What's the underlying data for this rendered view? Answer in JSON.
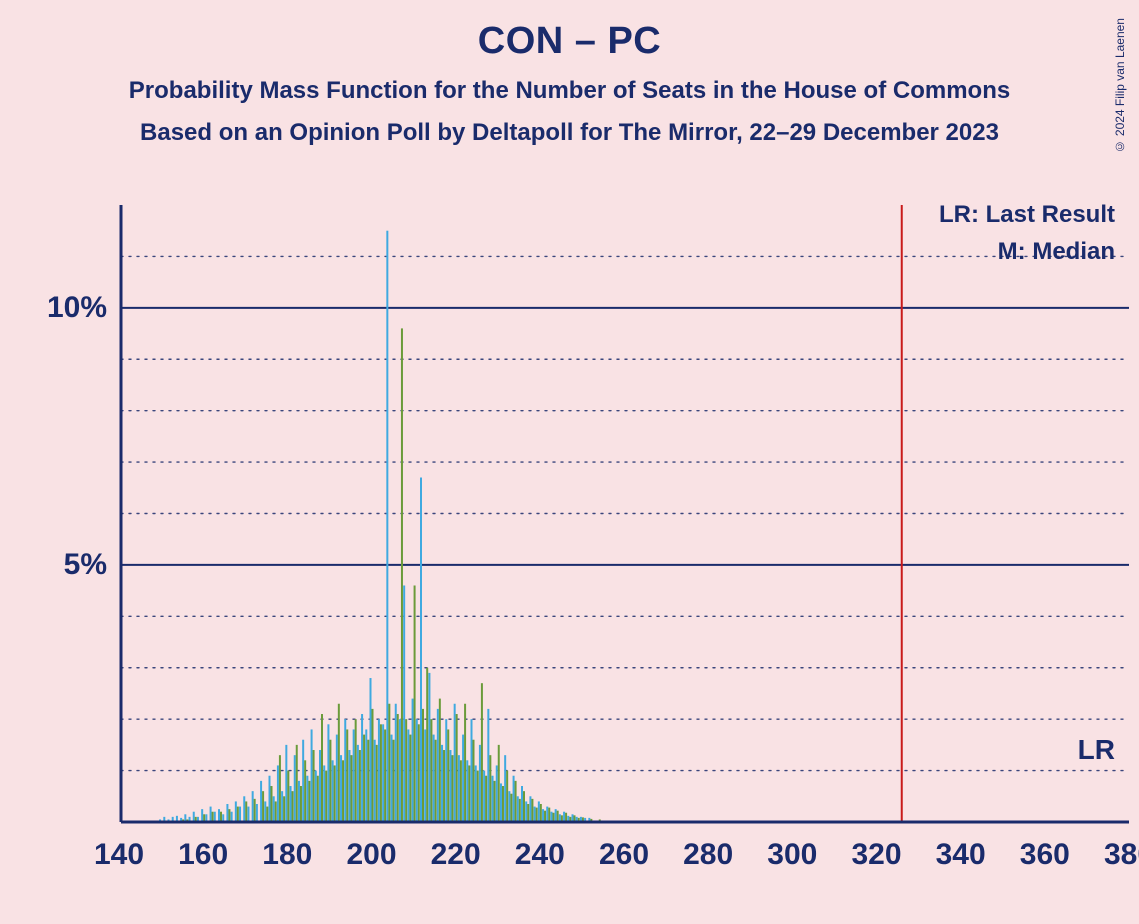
{
  "title": "CON – PC",
  "subtitle1": "Probability Mass Function for the Number of Seats in the House of Commons",
  "subtitle2": "Based on an Opinion Poll by Deltapoll for The Mirror, 22–29 December 2023",
  "copyright": "© 2024 Filip van Laenen",
  "legend": {
    "lr": "LR: Last Result",
    "m": "M: Median"
  },
  "lr_marker_label": "LR",
  "chart": {
    "type": "bar-pmf",
    "background_color": "#f9e2e4",
    "axis_color": "#1a2b6b",
    "grid_solid_color": "#1a2b6b",
    "grid_dotted_color": "#1a2b6b",
    "bar_color_a": "#3fa9e0",
    "bar_color_b": "#6b9b3a",
    "median_line_color": "#c91a1a",
    "lr_line_x": 326,
    "xlim": [
      140,
      380
    ],
    "ylim": [
      0,
      12
    ],
    "x_ticks": [
      140,
      160,
      180,
      200,
      220,
      240,
      260,
      280,
      300,
      320,
      340,
      360,
      380
    ],
    "y_major_ticks": [
      5,
      10
    ],
    "y_minor_ticks": [
      1,
      2,
      3,
      4,
      6,
      7,
      8,
      9,
      11
    ],
    "y_tick_labels": {
      "5": "5%",
      "10": "10%"
    },
    "title_fontsize": 38,
    "subtitle_fontsize": 24,
    "axis_label_fontsize": 30,
    "legend_fontsize": 24,
    "bars_a": [
      {
        "x": 150,
        "y": 0.05
      },
      {
        "x": 151,
        "y": 0.1
      },
      {
        "x": 152,
        "y": 0.05
      },
      {
        "x": 153,
        "y": 0.1
      },
      {
        "x": 154,
        "y": 0.12
      },
      {
        "x": 155,
        "y": 0.08
      },
      {
        "x": 156,
        "y": 0.15
      },
      {
        "x": 157,
        "y": 0.1
      },
      {
        "x": 158,
        "y": 0.2
      },
      {
        "x": 159,
        "y": 0.1
      },
      {
        "x": 160,
        "y": 0.25
      },
      {
        "x": 161,
        "y": 0.15
      },
      {
        "x": 162,
        "y": 0.3
      },
      {
        "x": 163,
        "y": 0.2
      },
      {
        "x": 164,
        "y": 0.25
      },
      {
        "x": 165,
        "y": 0.15
      },
      {
        "x": 166,
        "y": 0.35
      },
      {
        "x": 167,
        "y": 0.2
      },
      {
        "x": 168,
        "y": 0.4
      },
      {
        "x": 169,
        "y": 0.3
      },
      {
        "x": 170,
        "y": 0.5
      },
      {
        "x": 171,
        "y": 0.3
      },
      {
        "x": 172,
        "y": 0.6
      },
      {
        "x": 173,
        "y": 0.35
      },
      {
        "x": 174,
        "y": 0.8
      },
      {
        "x": 175,
        "y": 0.4
      },
      {
        "x": 176,
        "y": 0.9
      },
      {
        "x": 177,
        "y": 0.5
      },
      {
        "x": 178,
        "y": 1.1
      },
      {
        "x": 179,
        "y": 0.6
      },
      {
        "x": 180,
        "y": 1.5
      },
      {
        "x": 181,
        "y": 0.7
      },
      {
        "x": 182,
        "y": 1.3
      },
      {
        "x": 183,
        "y": 0.8
      },
      {
        "x": 184,
        "y": 1.6
      },
      {
        "x": 185,
        "y": 0.9
      },
      {
        "x": 186,
        "y": 1.8
      },
      {
        "x": 187,
        "y": 1.0
      },
      {
        "x": 188,
        "y": 1.4
      },
      {
        "x": 189,
        "y": 1.1
      },
      {
        "x": 190,
        "y": 1.9
      },
      {
        "x": 191,
        "y": 1.2
      },
      {
        "x": 192,
        "y": 1.7
      },
      {
        "x": 193,
        "y": 1.3
      },
      {
        "x": 194,
        "y": 2.0
      },
      {
        "x": 195,
        "y": 1.4
      },
      {
        "x": 196,
        "y": 1.8
      },
      {
        "x": 197,
        "y": 1.5
      },
      {
        "x": 198,
        "y": 2.1
      },
      {
        "x": 199,
        "y": 1.8
      },
      {
        "x": 200,
        "y": 2.8
      },
      {
        "x": 201,
        "y": 1.6
      },
      {
        "x": 202,
        "y": 2.0
      },
      {
        "x": 203,
        "y": 1.9
      },
      {
        "x": 204,
        "y": 11.5
      },
      {
        "x": 205,
        "y": 1.7
      },
      {
        "x": 206,
        "y": 2.3
      },
      {
        "x": 207,
        "y": 2.0
      },
      {
        "x": 208,
        "y": 4.6
      },
      {
        "x": 209,
        "y": 1.8
      },
      {
        "x": 210,
        "y": 2.4
      },
      {
        "x": 211,
        "y": 2.0
      },
      {
        "x": 212,
        "y": 6.7
      },
      {
        "x": 213,
        "y": 1.8
      },
      {
        "x": 214,
        "y": 2.9
      },
      {
        "x": 215,
        "y": 1.7
      },
      {
        "x": 216,
        "y": 2.2
      },
      {
        "x": 217,
        "y": 1.5
      },
      {
        "x": 218,
        "y": 2.0
      },
      {
        "x": 219,
        "y": 1.4
      },
      {
        "x": 220,
        "y": 2.3
      },
      {
        "x": 221,
        "y": 1.3
      },
      {
        "x": 222,
        "y": 1.7
      },
      {
        "x": 223,
        "y": 1.2
      },
      {
        "x": 224,
        "y": 2.0
      },
      {
        "x": 225,
        "y": 1.1
      },
      {
        "x": 226,
        "y": 1.5
      },
      {
        "x": 227,
        "y": 1.0
      },
      {
        "x": 228,
        "y": 2.2
      },
      {
        "x": 229,
        "y": 0.9
      },
      {
        "x": 230,
        "y": 1.1
      },
      {
        "x": 231,
        "y": 0.75
      },
      {
        "x": 232,
        "y": 1.3
      },
      {
        "x": 233,
        "y": 0.6
      },
      {
        "x": 234,
        "y": 0.9
      },
      {
        "x": 235,
        "y": 0.5
      },
      {
        "x": 236,
        "y": 0.7
      },
      {
        "x": 237,
        "y": 0.4
      },
      {
        "x": 238,
        "y": 0.5
      },
      {
        "x": 239,
        "y": 0.3
      },
      {
        "x": 240,
        "y": 0.4
      },
      {
        "x": 241,
        "y": 0.25
      },
      {
        "x": 242,
        "y": 0.3
      },
      {
        "x": 243,
        "y": 0.2
      },
      {
        "x": 244,
        "y": 0.25
      },
      {
        "x": 245,
        "y": 0.15
      },
      {
        "x": 246,
        "y": 0.2
      },
      {
        "x": 247,
        "y": 0.12
      },
      {
        "x": 248,
        "y": 0.15
      },
      {
        "x": 249,
        "y": 0.1
      },
      {
        "x": 250,
        "y": 0.1
      },
      {
        "x": 251,
        "y": 0.08
      },
      {
        "x": 252,
        "y": 0.08
      }
    ],
    "bars_b": [
      {
        "x": 155,
        "y": 0.05
      },
      {
        "x": 156,
        "y": 0.05
      },
      {
        "x": 158,
        "y": 0.1
      },
      {
        "x": 160,
        "y": 0.15
      },
      {
        "x": 162,
        "y": 0.2
      },
      {
        "x": 164,
        "y": 0.2
      },
      {
        "x": 166,
        "y": 0.25
      },
      {
        "x": 168,
        "y": 0.3
      },
      {
        "x": 170,
        "y": 0.4
      },
      {
        "x": 172,
        "y": 0.45
      },
      {
        "x": 174,
        "y": 0.6
      },
      {
        "x": 175,
        "y": 0.3
      },
      {
        "x": 176,
        "y": 0.7
      },
      {
        "x": 177,
        "y": 0.4
      },
      {
        "x": 178,
        "y": 1.3
      },
      {
        "x": 179,
        "y": 0.5
      },
      {
        "x": 180,
        "y": 1.0
      },
      {
        "x": 181,
        "y": 0.6
      },
      {
        "x": 182,
        "y": 1.5
      },
      {
        "x": 183,
        "y": 0.7
      },
      {
        "x": 184,
        "y": 1.2
      },
      {
        "x": 185,
        "y": 0.8
      },
      {
        "x": 186,
        "y": 1.4
      },
      {
        "x": 187,
        "y": 0.9
      },
      {
        "x": 188,
        "y": 2.1
      },
      {
        "x": 189,
        "y": 1.0
      },
      {
        "x": 190,
        "y": 1.6
      },
      {
        "x": 191,
        "y": 1.1
      },
      {
        "x": 192,
        "y": 2.3
      },
      {
        "x": 193,
        "y": 1.2
      },
      {
        "x": 194,
        "y": 1.8
      },
      {
        "x": 195,
        "y": 1.3
      },
      {
        "x": 196,
        "y": 2.0
      },
      {
        "x": 197,
        "y": 1.4
      },
      {
        "x": 198,
        "y": 1.7
      },
      {
        "x": 199,
        "y": 1.6
      },
      {
        "x": 200,
        "y": 2.2
      },
      {
        "x": 201,
        "y": 1.5
      },
      {
        "x": 202,
        "y": 1.9
      },
      {
        "x": 203,
        "y": 1.8
      },
      {
        "x": 204,
        "y": 2.3
      },
      {
        "x": 205,
        "y": 1.6
      },
      {
        "x": 206,
        "y": 2.1
      },
      {
        "x": 207,
        "y": 9.6
      },
      {
        "x": 208,
        "y": 2.0
      },
      {
        "x": 209,
        "y": 1.7
      },
      {
        "x": 210,
        "y": 4.6
      },
      {
        "x": 211,
        "y": 1.9
      },
      {
        "x": 212,
        "y": 2.2
      },
      {
        "x": 213,
        "y": 3.0
      },
      {
        "x": 214,
        "y": 2.0
      },
      {
        "x": 215,
        "y": 1.6
      },
      {
        "x": 216,
        "y": 2.4
      },
      {
        "x": 217,
        "y": 1.4
      },
      {
        "x": 218,
        "y": 1.8
      },
      {
        "x": 219,
        "y": 1.3
      },
      {
        "x": 220,
        "y": 2.1
      },
      {
        "x": 221,
        "y": 1.2
      },
      {
        "x": 222,
        "y": 2.3
      },
      {
        "x": 223,
        "y": 1.1
      },
      {
        "x": 224,
        "y": 1.6
      },
      {
        "x": 225,
        "y": 1.0
      },
      {
        "x": 226,
        "y": 2.7
      },
      {
        "x": 227,
        "y": 0.9
      },
      {
        "x": 228,
        "y": 1.3
      },
      {
        "x": 229,
        "y": 0.8
      },
      {
        "x": 230,
        "y": 1.5
      },
      {
        "x": 231,
        "y": 0.7
      },
      {
        "x": 232,
        "y": 1.0
      },
      {
        "x": 233,
        "y": 0.55
      },
      {
        "x": 234,
        "y": 0.8
      },
      {
        "x": 235,
        "y": 0.45
      },
      {
        "x": 236,
        "y": 0.6
      },
      {
        "x": 237,
        "y": 0.35
      },
      {
        "x": 238,
        "y": 0.45
      },
      {
        "x": 239,
        "y": 0.28
      },
      {
        "x": 240,
        "y": 0.35
      },
      {
        "x": 241,
        "y": 0.22
      },
      {
        "x": 242,
        "y": 0.28
      },
      {
        "x": 243,
        "y": 0.18
      },
      {
        "x": 244,
        "y": 0.22
      },
      {
        "x": 245,
        "y": 0.13
      },
      {
        "x": 246,
        "y": 0.18
      },
      {
        "x": 247,
        "y": 0.1
      },
      {
        "x": 248,
        "y": 0.13
      },
      {
        "x": 249,
        "y": 0.08
      },
      {
        "x": 250,
        "y": 0.09
      },
      {
        "x": 252,
        "y": 0.06
      },
      {
        "x": 254,
        "y": 0.05
      }
    ]
  }
}
